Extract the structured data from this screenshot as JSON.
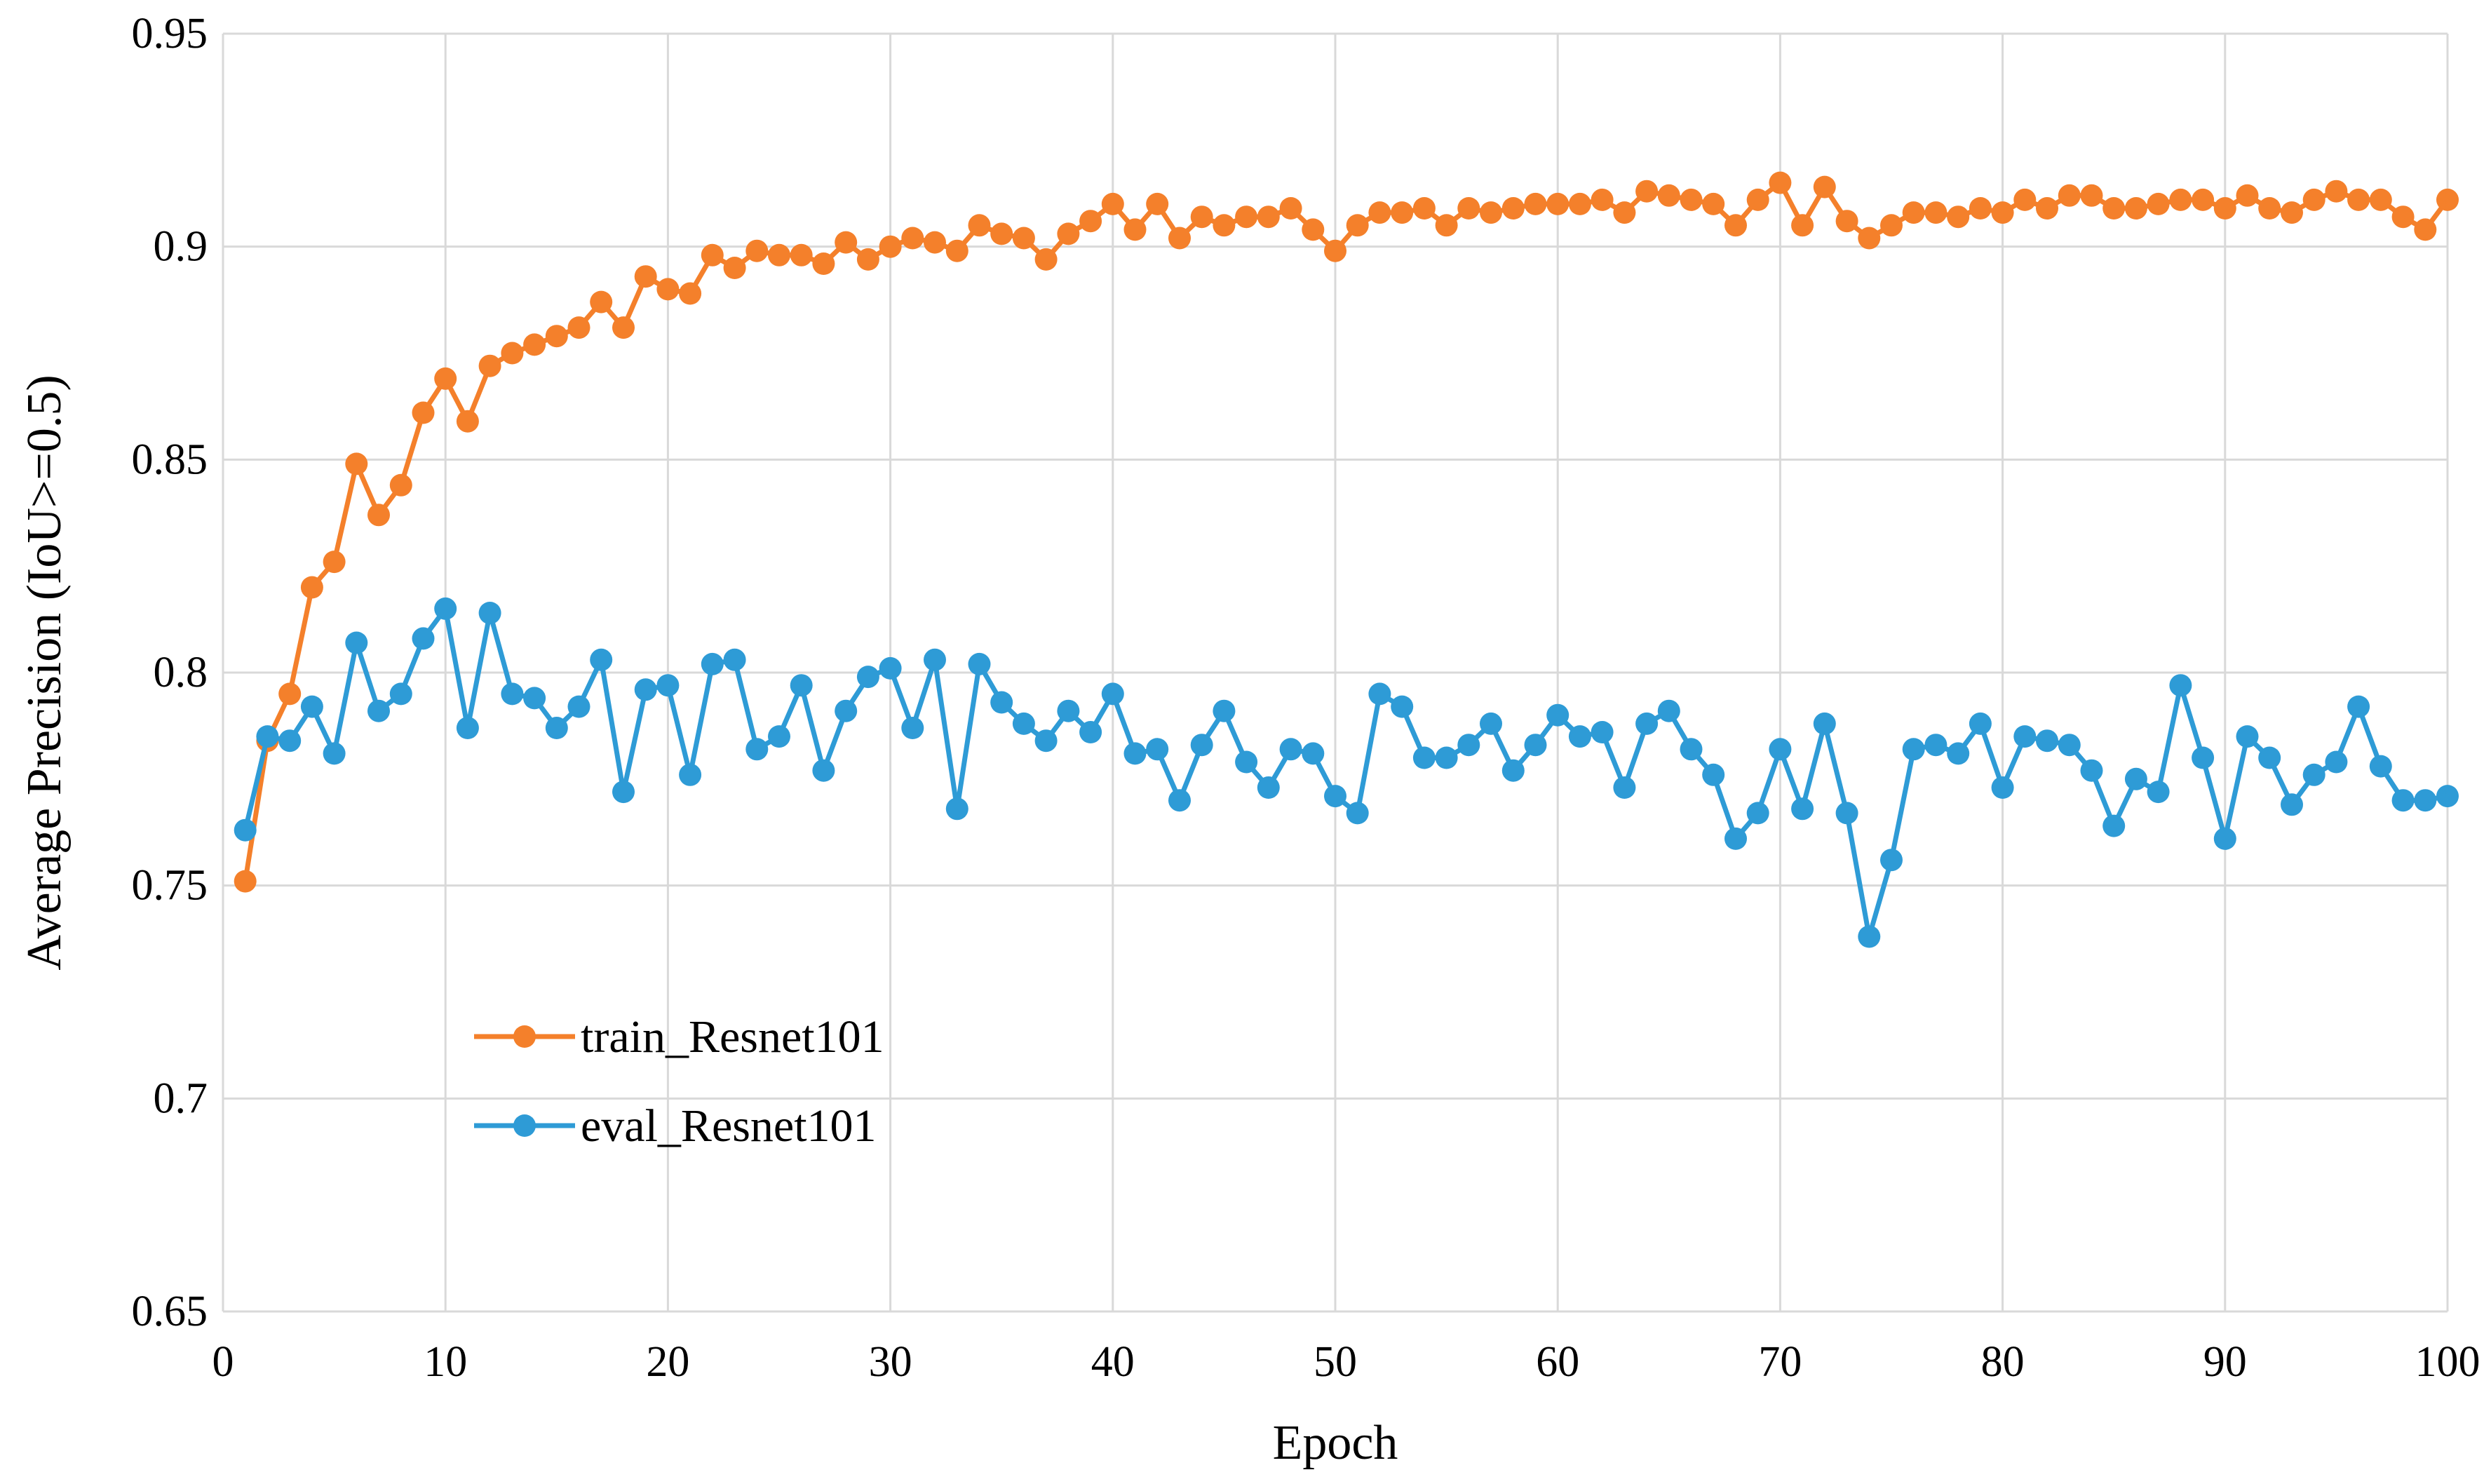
{
  "chart_data": {
    "type": "line",
    "title": "",
    "xlabel": "Epoch",
    "ylabel": "Average Precision (IoU>=0.5)",
    "xlim": [
      0,
      100
    ],
    "ylim": [
      0.65,
      0.95
    ],
    "x_ticks": [
      "0",
      "10",
      "20",
      "30",
      "40",
      "50",
      "60",
      "70",
      "80",
      "90",
      "100"
    ],
    "y_ticks": [
      "0.65",
      "0.7",
      "0.75",
      "0.8",
      "0.85",
      "0.9",
      "0.95"
    ],
    "grid": true,
    "legend_position": "lower-left",
    "x": [
      1,
      2,
      3,
      4,
      5,
      6,
      7,
      8,
      9,
      10,
      11,
      12,
      13,
      14,
      15,
      16,
      17,
      18,
      19,
      20,
      21,
      22,
      23,
      24,
      25,
      26,
      27,
      28,
      29,
      30,
      31,
      32,
      33,
      34,
      35,
      36,
      37,
      38,
      39,
      40,
      41,
      42,
      43,
      44,
      45,
      46,
      47,
      48,
      49,
      50,
      51,
      52,
      53,
      54,
      55,
      56,
      57,
      58,
      59,
      60,
      61,
      62,
      63,
      64,
      65,
      66,
      67,
      68,
      69,
      70,
      71,
      72,
      73,
      74,
      75,
      76,
      77,
      78,
      79,
      80,
      81,
      82,
      83,
      84,
      85,
      86,
      87,
      88,
      89,
      90,
      91,
      92,
      93,
      94,
      95,
      96,
      97,
      98,
      99,
      100
    ],
    "series": [
      {
        "name": "train_Resnet101",
        "color": "#f4802b",
        "values": [
          0.751,
          0.784,
          0.795,
          0.82,
          0.826,
          0.849,
          0.837,
          0.844,
          0.861,
          0.869,
          0.859,
          0.872,
          0.875,
          0.877,
          0.879,
          0.881,
          0.887,
          0.881,
          0.893,
          0.89,
          0.889,
          0.898,
          0.895,
          0.899,
          0.898,
          0.898,
          0.896,
          0.901,
          0.897,
          0.9,
          0.902,
          0.901,
          0.899,
          0.905,
          0.903,
          0.902,
          0.897,
          0.903,
          0.906,
          0.91,
          0.904,
          0.91,
          0.902,
          0.907,
          0.905,
          0.907,
          0.907,
          0.909,
          0.904,
          0.899,
          0.905,
          0.908,
          0.908,
          0.909,
          0.905,
          0.909,
          0.908,
          0.909,
          0.91,
          0.91,
          0.91,
          0.911,
          0.908,
          0.913,
          0.912,
          0.911,
          0.91,
          0.905,
          0.911,
          0.915,
          0.905,
          0.914,
          0.906,
          0.902,
          0.905,
          0.908,
          0.908,
          0.907,
          0.909,
          0.908,
          0.911,
          0.909,
          0.912,
          0.912,
          0.909,
          0.909,
          0.91,
          0.911,
          0.911,
          0.909,
          0.912,
          0.909,
          0.908,
          0.911,
          0.913,
          0.911,
          0.911,
          0.907,
          0.904,
          0.911
        ]
      },
      {
        "name": "eval_Resnet101",
        "color": "#2e9bd6",
        "values": [
          0.763,
          0.785,
          0.784,
          0.792,
          0.781,
          0.807,
          0.791,
          0.795,
          0.808,
          0.815,
          0.787,
          0.814,
          0.795,
          0.794,
          0.787,
          0.792,
          0.803,
          0.772,
          0.796,
          0.797,
          0.776,
          0.802,
          0.803,
          0.782,
          0.785,
          0.797,
          0.777,
          0.791,
          0.799,
          0.801,
          0.787,
          0.803,
          0.768,
          0.802,
          0.793,
          0.788,
          0.784,
          0.791,
          0.786,
          0.795,
          0.781,
          0.782,
          0.77,
          0.783,
          0.791,
          0.779,
          0.773,
          0.782,
          0.781,
          0.771,
          0.767,
          0.795,
          0.792,
          0.78,
          0.78,
          0.783,
          0.788,
          0.777,
          0.783,
          0.79,
          0.785,
          0.786,
          0.773,
          0.788,
          0.791,
          0.782,
          0.776,
          0.761,
          0.767,
          0.782,
          0.768,
          0.788,
          0.767,
          0.738,
          0.756,
          0.782,
          0.783,
          0.781,
          0.788,
          0.773,
          0.785,
          0.784,
          0.783,
          0.777,
          0.764,
          0.775,
          0.772,
          0.797,
          0.78,
          0.761,
          0.785,
          0.78,
          0.769,
          0.776,
          0.779,
          0.792,
          0.778,
          0.77,
          0.77,
          0.771
        ]
      }
    ]
  }
}
